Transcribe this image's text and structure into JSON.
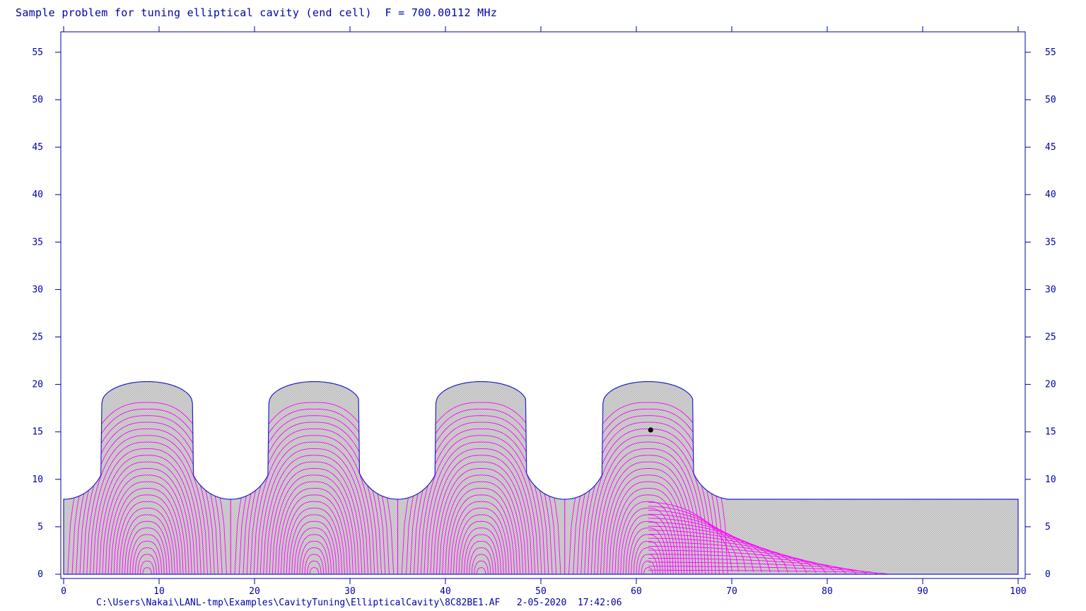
{
  "title": "Sample problem for tuning elliptical cavity (end cell)  F = 700.00112 MHz",
  "footer": {
    "path": "C:\\Users\\Nakai\\LANL-tmp\\Examples\\CavityTuning\\EllipticalCavity\\8C82BE1.AF",
    "date": "2-05-2020",
    "time": "17:42:06"
  },
  "chart_data": {
    "type": "field-plot",
    "title": "Sample problem for tuning elliptical cavity (end cell)  F = 700.00112 MHz",
    "xlim": [
      0,
      100
    ],
    "ylim": [
      0,
      57
    ],
    "x_ticks": [
      0,
      10,
      20,
      30,
      40,
      50,
      60,
      70,
      80,
      90,
      100
    ],
    "y_ticks": [
      0,
      5,
      10,
      15,
      20,
      25,
      30,
      35,
      40,
      45,
      50,
      55
    ],
    "frequency_mhz": 700.00112,
    "geometry": {
      "beam_pipe_radius": 7.9,
      "iris_positions": [
        0,
        17.5,
        35,
        52.5
      ],
      "cell_length": 17.5,
      "cell_centers": [
        8.75,
        26.25,
        43.75,
        61.25
      ],
      "equator_radius": 20.3,
      "equator_flat_radius": 18.0,
      "equator_half_width": 4.75,
      "iris_ellipse_half_width": 4.5,
      "end_cell_exit": 69.5,
      "beam_pipe_end": 100
    },
    "field_line_count": 26,
    "marker": {
      "x": 61.5,
      "y": 15.2
    },
    "colors": {
      "axes": "#0000a8",
      "boundary": "#2020cc",
      "field_lines": "#ff00ff",
      "mesh": "#c4c4c4"
    }
  }
}
